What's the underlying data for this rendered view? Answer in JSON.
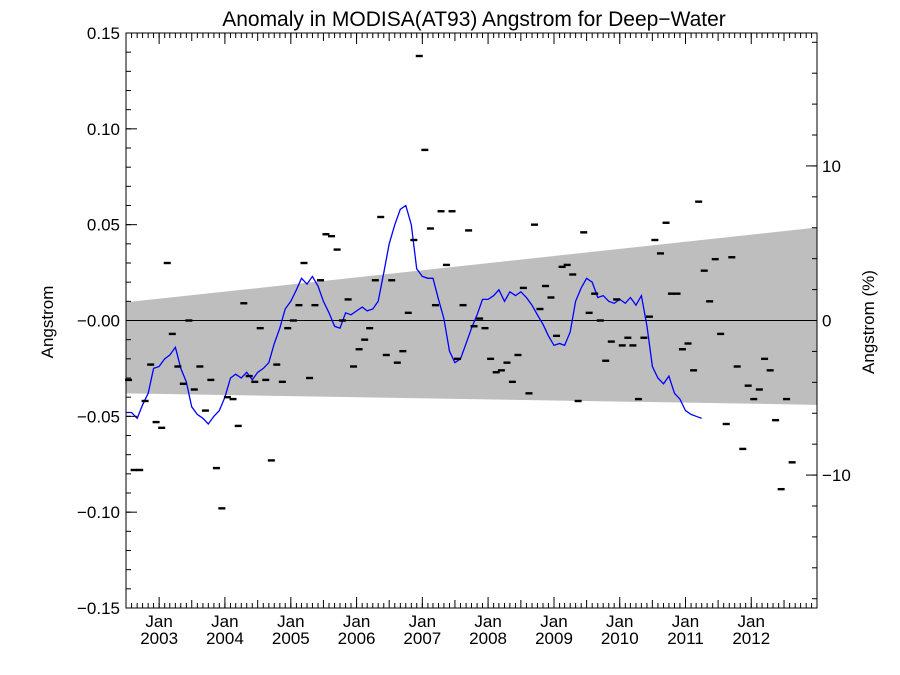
{
  "chart_data": {
    "type": "scatter",
    "title": "Anomaly in MODISA(AT93) Angstrom for Deep−Water",
    "ylabel": "Angstrom",
    "ylabel_right": "Angstrom (%)",
    "ylim": [
      -0.15,
      0.15
    ],
    "y_ticks": [
      "0.15",
      "0.10",
      "0.05",
      "−0.00",
      "−0.05",
      "−0.10",
      "−0.15"
    ],
    "y_tick_values": [
      0.15,
      0.1,
      0.05,
      0.0,
      -0.05,
      -0.1,
      -0.15
    ],
    "y2lim": [
      -18.6,
      18.6
    ],
    "y2_ticks": [
      "10",
      "0",
      "−10"
    ],
    "y2_tick_values": [
      10,
      0,
      -10
    ],
    "xlim": [
      "2002-07-01",
      "2012-12-31"
    ],
    "x_ticks": [
      {
        "month": "Jan",
        "year": "2003",
        "date": "2003-01-01"
      },
      {
        "month": "Jan",
        "year": "2004",
        "date": "2004-01-01"
      },
      {
        "month": "Jan",
        "year": "2005",
        "date": "2005-01-01"
      },
      {
        "month": "Jan",
        "year": "2006",
        "date": "2006-01-01"
      },
      {
        "month": "Jan",
        "year": "2007",
        "date": "2007-01-01"
      },
      {
        "month": "Jan",
        "year": "2008",
        "date": "2008-01-01"
      },
      {
        "month": "Jan",
        "year": "2009",
        "date": "2009-01-01"
      },
      {
        "month": "Jan",
        "year": "2010",
        "date": "2010-01-01"
      },
      {
        "month": "Jan",
        "year": "2011",
        "date": "2011-01-01"
      },
      {
        "month": "Jan",
        "year": "2012",
        "date": "2012-01-01"
      }
    ],
    "reference_line": 0,
    "band": {
      "x": [
        "2002-07-01",
        "2012-12-31"
      ],
      "upper": [
        0.0095,
        0.0485
      ],
      "lower": [
        -0.038,
        -0.044
      ],
      "color": "#bebebe"
    },
    "monthly_anomaly": {
      "marker": "dash",
      "color": "#000000",
      "points": [
        [
          "2002-07-15",
          -0.031
        ],
        [
          "2002-08-15",
          -0.078
        ],
        [
          "2002-09-15",
          -0.078
        ],
        [
          "2002-10-15",
          -0.042
        ],
        [
          "2002-11-15",
          -0.023
        ],
        [
          "2002-12-15",
          -0.053
        ],
        [
          "2003-01-15",
          -0.056
        ],
        [
          "2003-02-15",
          0.03
        ],
        [
          "2003-03-15",
          -0.007
        ],
        [
          "2003-04-15",
          -0.024
        ],
        [
          "2003-05-15",
          -0.033
        ],
        [
          "2003-06-15",
          0.0
        ],
        [
          "2003-07-15",
          -0.036
        ],
        [
          "2003-08-15",
          -0.024
        ],
        [
          "2003-09-15",
          -0.047
        ],
        [
          "2003-10-15",
          -0.031
        ],
        [
          "2003-11-15",
          -0.077
        ],
        [
          "2003-12-15",
          -0.098
        ],
        [
          "2004-01-15",
          -0.04
        ],
        [
          "2004-02-15",
          -0.041
        ],
        [
          "2004-03-15",
          -0.055
        ],
        [
          "2004-04-15",
          0.009
        ],
        [
          "2004-05-15",
          -0.029
        ],
        [
          "2004-06-15",
          -0.032
        ],
        [
          "2004-07-15",
          -0.004
        ],
        [
          "2004-08-15",
          -0.031
        ],
        [
          "2004-09-15",
          -0.073
        ],
        [
          "2004-10-15",
          -0.023
        ],
        [
          "2004-11-15",
          -0.032
        ],
        [
          "2004-12-15",
          -0.004
        ],
        [
          "2005-01-15",
          0.0
        ],
        [
          "2005-02-15",
          0.008
        ],
        [
          "2005-03-15",
          0.03
        ],
        [
          "2005-04-15",
          -0.03
        ],
        [
          "2005-05-15",
          0.008
        ],
        [
          "2005-06-15",
          0.021
        ],
        [
          "2005-07-15",
          0.045
        ],
        [
          "2005-08-15",
          0.044
        ],
        [
          "2005-09-15",
          0.037
        ],
        [
          "2005-10-15",
          0.0
        ],
        [
          "2005-11-15",
          0.011
        ],
        [
          "2005-12-15",
          -0.024
        ],
        [
          "2006-01-15",
          -0.015
        ],
        [
          "2006-02-15",
          -0.01
        ],
        [
          "2006-03-15",
          -0.004
        ],
        [
          "2006-04-15",
          0.021
        ],
        [
          "2006-05-15",
          0.054
        ],
        [
          "2006-06-15",
          -0.018
        ],
        [
          "2006-07-15",
          0.021
        ],
        [
          "2006-08-15",
          -0.022
        ],
        [
          "2006-09-15",
          -0.016
        ],
        [
          "2006-10-15",
          0.004
        ],
        [
          "2006-11-15",
          0.042
        ],
        [
          "2006-12-15",
          0.138
        ],
        [
          "2007-01-15",
          0.089
        ],
        [
          "2007-02-15",
          0.048
        ],
        [
          "2007-03-15",
          0.008
        ],
        [
          "2007-04-15",
          0.057
        ],
        [
          "2007-05-15",
          0.029
        ],
        [
          "2007-06-15",
          0.057
        ],
        [
          "2007-07-15",
          -0.02
        ],
        [
          "2007-08-15",
          0.008
        ],
        [
          "2007-09-15",
          0.047
        ],
        [
          "2007-10-15",
          -0.003
        ],
        [
          "2007-11-15",
          0.001
        ],
        [
          "2007-12-15",
          -0.004
        ],
        [
          "2008-01-15",
          -0.02
        ],
        [
          "2008-02-15",
          -0.027
        ],
        [
          "2008-03-15",
          -0.026
        ],
        [
          "2008-04-15",
          -0.022
        ],
        [
          "2008-05-15",
          -0.032
        ],
        [
          "2008-06-15",
          -0.018
        ],
        [
          "2008-07-15",
          0.017
        ],
        [
          "2008-08-15",
          -0.038
        ],
        [
          "2008-09-15",
          0.05
        ],
        [
          "2008-10-15",
          0.006
        ],
        [
          "2008-11-15",
          0.018
        ],
        [
          "2008-12-15",
          0.012
        ],
        [
          "2009-01-15",
          -0.008
        ],
        [
          "2009-02-15",
          0.028
        ],
        [
          "2009-03-15",
          0.029
        ],
        [
          "2009-04-15",
          0.024
        ],
        [
          "2009-05-15",
          -0.042
        ],
        [
          "2009-06-15",
          0.046
        ],
        [
          "2009-07-15",
          0.004
        ],
        [
          "2009-08-15",
          0.014
        ],
        [
          "2009-09-15",
          0.0
        ],
        [
          "2009-10-15",
          -0.021
        ],
        [
          "2009-11-15",
          -0.011
        ],
        [
          "2009-12-15",
          0.011
        ],
        [
          "2010-01-15",
          -0.013
        ],
        [
          "2010-02-15",
          -0.009
        ],
        [
          "2010-03-15",
          -0.013
        ],
        [
          "2010-04-15",
          -0.041
        ],
        [
          "2010-05-15",
          -0.009
        ],
        [
          "2010-06-15",
          0.002
        ],
        [
          "2010-07-15",
          0.042
        ],
        [
          "2010-08-15",
          0.035
        ],
        [
          "2010-09-15",
          0.051
        ],
        [
          "2010-10-15",
          0.014
        ],
        [
          "2010-11-15",
          0.014
        ],
        [
          "2010-12-15",
          -0.015
        ],
        [
          "2011-01-15",
          -0.012
        ],
        [
          "2011-02-15",
          -0.026
        ],
        [
          "2011-03-15",
          0.062
        ],
        [
          "2011-04-15",
          0.026
        ],
        [
          "2011-05-15",
          0.01
        ],
        [
          "2011-06-15",
          0.032
        ],
        [
          "2011-07-15",
          -0.007
        ],
        [
          "2011-08-15",
          -0.054
        ],
        [
          "2011-09-15",
          0.033
        ],
        [
          "2011-10-15",
          -0.024
        ],
        [
          "2011-11-15",
          -0.067
        ],
        [
          "2011-12-15",
          -0.034
        ],
        [
          "2012-01-15",
          -0.041
        ],
        [
          "2012-02-15",
          -0.036
        ],
        [
          "2012-03-15",
          -0.02
        ],
        [
          "2012-04-15",
          -0.026
        ],
        [
          "2012-05-15",
          -0.052
        ],
        [
          "2012-06-15",
          -0.088
        ],
        [
          "2012-07-15",
          -0.041
        ],
        [
          "2012-08-15",
          -0.074
        ]
      ]
    },
    "smoothed": {
      "color": "#0000ff",
      "points": [
        [
          "2002-07-01",
          -0.048
        ],
        [
          "2002-08-01",
          -0.048
        ],
        [
          "2002-09-01",
          -0.051
        ],
        [
          "2002-10-01",
          -0.044
        ],
        [
          "2002-11-01",
          -0.038
        ],
        [
          "2002-12-01",
          -0.025
        ],
        [
          "2003-01-01",
          -0.024
        ],
        [
          "2003-02-01",
          -0.02
        ],
        [
          "2003-03-01",
          -0.018
        ],
        [
          "2003-04-01",
          -0.014
        ],
        [
          "2003-05-01",
          -0.025
        ],
        [
          "2003-06-01",
          -0.032
        ],
        [
          "2003-07-01",
          -0.045
        ],
        [
          "2003-08-01",
          -0.049
        ],
        [
          "2003-09-01",
          -0.051
        ],
        [
          "2003-10-01",
          -0.054
        ],
        [
          "2003-11-01",
          -0.05
        ],
        [
          "2003-12-01",
          -0.047
        ],
        [
          "2004-01-01",
          -0.04
        ],
        [
          "2004-02-01",
          -0.03
        ],
        [
          "2004-03-01",
          -0.028
        ],
        [
          "2004-04-01",
          -0.03
        ],
        [
          "2004-05-01",
          -0.027
        ],
        [
          "2004-06-01",
          -0.031
        ],
        [
          "2004-07-01",
          -0.027
        ],
        [
          "2004-08-01",
          -0.025
        ],
        [
          "2004-09-01",
          -0.022
        ],
        [
          "2004-10-01",
          -0.012
        ],
        [
          "2004-11-01",
          -0.004
        ],
        [
          "2004-12-01",
          0.006
        ],
        [
          "2005-01-01",
          0.01
        ],
        [
          "2005-02-01",
          0.016
        ],
        [
          "2005-03-01",
          0.022
        ],
        [
          "2005-04-01",
          0.019
        ],
        [
          "2005-05-01",
          0.023
        ],
        [
          "2005-06-01",
          0.018
        ],
        [
          "2005-07-01",
          0.01
        ],
        [
          "2005-08-01",
          0.004
        ],
        [
          "2005-09-01",
          -0.003
        ],
        [
          "2005-10-01",
          -0.004
        ],
        [
          "2005-11-01",
          0.004
        ],
        [
          "2005-12-01",
          0.003
        ],
        [
          "2006-01-01",
          0.005
        ],
        [
          "2006-02-01",
          0.007
        ],
        [
          "2006-03-01",
          0.005
        ],
        [
          "2006-04-01",
          0.006
        ],
        [
          "2006-05-01",
          0.01
        ],
        [
          "2006-06-01",
          0.025
        ],
        [
          "2006-07-01",
          0.04
        ],
        [
          "2006-08-01",
          0.05
        ],
        [
          "2006-09-01",
          0.058
        ],
        [
          "2006-10-01",
          0.06
        ],
        [
          "2006-11-01",
          0.05
        ],
        [
          "2006-12-01",
          0.027
        ],
        [
          "2007-01-01",
          0.023
        ],
        [
          "2007-02-01",
          0.022
        ],
        [
          "2007-03-01",
          0.022
        ],
        [
          "2007-04-01",
          0.011
        ],
        [
          "2007-05-01",
          0.001
        ],
        [
          "2007-06-01",
          -0.016
        ],
        [
          "2007-07-01",
          -0.022
        ],
        [
          "2007-08-01",
          -0.02
        ],
        [
          "2007-09-01",
          -0.012
        ],
        [
          "2007-10-01",
          -0.004
        ],
        [
          "2007-11-01",
          0.003
        ],
        [
          "2007-12-01",
          0.011
        ],
        [
          "2008-01-01",
          0.011
        ],
        [
          "2008-02-01",
          0.013
        ],
        [
          "2008-03-01",
          0.016
        ],
        [
          "2008-04-01",
          0.01
        ],
        [
          "2008-05-01",
          0.015
        ],
        [
          "2008-06-01",
          0.013
        ],
        [
          "2008-07-01",
          0.015
        ],
        [
          "2008-08-01",
          0.012
        ],
        [
          "2008-09-01",
          0.008
        ],
        [
          "2008-10-01",
          0.003
        ],
        [
          "2008-11-01",
          -0.002
        ],
        [
          "2008-12-01",
          -0.008
        ],
        [
          "2009-01-01",
          -0.013
        ],
        [
          "2009-02-01",
          -0.012
        ],
        [
          "2009-03-01",
          -0.013
        ],
        [
          "2009-04-01",
          -0.006
        ],
        [
          "2009-05-01",
          0.01
        ],
        [
          "2009-06-01",
          0.017
        ],
        [
          "2009-07-01",
          0.022
        ],
        [
          "2009-08-01",
          0.02
        ],
        [
          "2009-09-01",
          0.012
        ],
        [
          "2009-10-01",
          0.013
        ],
        [
          "2009-11-01",
          0.01
        ],
        [
          "2009-12-01",
          0.009
        ],
        [
          "2010-01-01",
          0.011
        ],
        [
          "2010-02-01",
          0.009
        ],
        [
          "2010-03-01",
          0.012
        ],
        [
          "2010-04-01",
          0.008
        ],
        [
          "2010-05-01",
          0.013
        ],
        [
          "2010-06-01",
          -0.003
        ],
        [
          "2010-07-01",
          -0.024
        ],
        [
          "2010-08-01",
          -0.03
        ],
        [
          "2010-09-01",
          -0.033
        ],
        [
          "2010-10-01",
          -0.029
        ],
        [
          "2010-11-01",
          -0.038
        ],
        [
          "2010-12-01",
          -0.041
        ],
        [
          "2011-01-01",
          -0.047
        ],
        [
          "2011-02-01",
          -0.049
        ],
        [
          "2011-03-01",
          -0.05
        ],
        [
          "2011-04-01",
          -0.051
        ]
      ]
    }
  }
}
